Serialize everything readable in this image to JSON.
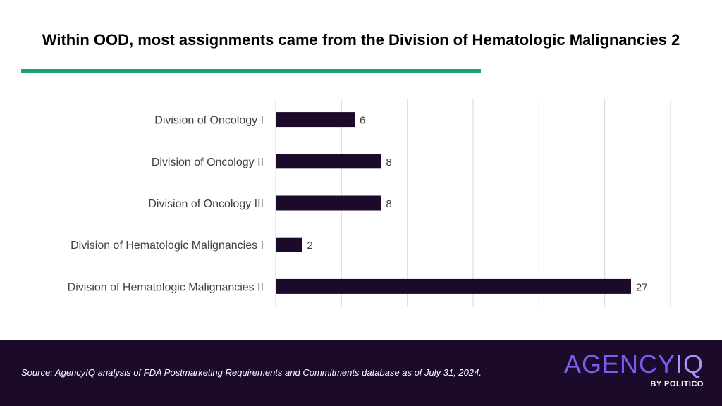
{
  "title": "Within OOD, most assignments came from the Division of Hematologic Malignancies 2",
  "colors": {
    "accent": "#17a377",
    "bar": "#1c0a2b",
    "footer_bg": "#1c0a2b",
    "grid": "#d9d9d9"
  },
  "chart_data": {
    "type": "bar",
    "orientation": "horizontal",
    "categories": [
      "Division of Oncology I",
      "Division of Oncology II",
      "Division of Oncology III",
      "Division of Hematologic Malignancies I",
      "Division of Hematologic Malignancies II"
    ],
    "values": [
      6,
      8,
      8,
      2,
      27
    ],
    "xlim": [
      0,
      30
    ],
    "grid": true,
    "legend": "none"
  },
  "footer": {
    "source": "Source: AgencyIQ analysis of FDA Postmarketing Requirements and Commitments database as of July 31, 2024."
  },
  "logo": {
    "agency": "AGENCY",
    "iq": "IQ",
    "sub": "BY POLITICO"
  }
}
